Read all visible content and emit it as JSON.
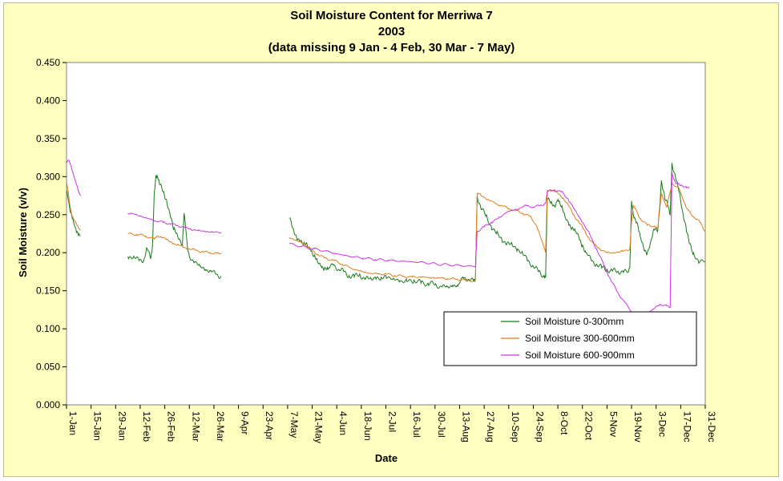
{
  "chart_data": {
    "type": "line",
    "title": "Soil Moisture Content for Merriwa 7",
    "subtitle": "2003",
    "note": "(data missing 9 Jan - 4 Feb, 30 Mar - 7 May)",
    "xlabel": "Date",
    "ylabel": "Soil Moisture (v/v)",
    "ylim": [
      0,
      0.45
    ],
    "yticks": [
      "0.000",
      "0.050",
      "0.100",
      "0.150",
      "0.200",
      "0.250",
      "0.300",
      "0.350",
      "0.400",
      "0.450"
    ],
    "xlim": [
      "1-Jan",
      "31-Dec"
    ],
    "xticks": [
      "1-Jan",
      "15-Jan",
      "29-Jan",
      "12-Feb",
      "26-Feb",
      "12-Mar",
      "26-Mar",
      "9-Apr",
      "23-Apr",
      "7-May",
      "21-May",
      "4-Jun",
      "18-Jun",
      "2-Jul",
      "16-Jul",
      "30-Jul",
      "13-Aug",
      "27-Aug",
      "10-Sep",
      "24-Sep",
      "8-Oct",
      "22-Oct",
      "5-Nov",
      "19-Nov",
      "3-Dec",
      "17-Dec",
      "31-Dec"
    ],
    "grid": false,
    "legend_position": "bottom-right",
    "series": [
      {
        "name": "Soil Moisture 0-300mm",
        "color": "#1a7a1a",
        "segments": [
          {
            "x": [
              "1-Jan",
              "2-Jan",
              "3-Jan",
              "4-Jan",
              "5-Jan",
              "6-Jan",
              "7-Jan",
              "8-Jan",
              "9-Jan"
            ],
            "y": [
              0.282,
              0.27,
              0.255,
              0.248,
              0.24,
              0.233,
              0.228,
              0.225,
              0.222
            ]
          },
          {
            "x": [
              "5-Feb",
              "8-Feb",
              "11-Feb",
              "14-Feb",
              "16-Feb",
              "18-Feb",
              "19-Feb",
              "20-Feb",
              "21-Feb",
              "22-Feb",
              "23-Feb",
              "25-Feb",
              "27-Feb",
              "1-Mar",
              "3-Mar",
              "5-Mar",
              "7-Mar",
              "8-Mar",
              "9-Mar",
              "10-Mar",
              "11-Mar",
              "12-Mar",
              "15-Mar",
              "18-Mar",
              "21-Mar",
              "24-Mar",
              "27-Mar",
              "30-Mar"
            ],
            "y": [
              0.195,
              0.193,
              0.192,
              0.19,
              0.205,
              0.192,
              0.21,
              0.28,
              0.302,
              0.298,
              0.29,
              0.28,
              0.27,
              0.25,
              0.23,
              0.225,
              0.215,
              0.208,
              0.252,
              0.23,
              0.205,
              0.195,
              0.188,
              0.182,
              0.178,
              0.176,
              0.172,
              0.169
            ]
          },
          {
            "x": [
              "8-May",
              "10-May",
              "12-May",
              "14-May",
              "16-May",
              "18-May",
              "20-May",
              "22-May",
              "24-May",
              "26-May",
              "28-May",
              "30-May",
              "2-Jun",
              "5-Jun",
              "8-Jun",
              "11-Jun",
              "14-Jun",
              "17-Jun",
              "20-Jun",
              "23-Jun",
              "26-Jun",
              "29-Jun",
              "2-Jul",
              "6-Jul",
              "10-Jul",
              "14-Jul",
              "18-Jul",
              "22-Jul",
              "26-Jul",
              "30-Jul",
              "3-Aug",
              "6-Aug",
              "9-Aug",
              "12-Aug",
              "15-Aug",
              "18-Aug",
              "21-Aug",
              "22-Aug"
            ],
            "y": [
              0.245,
              0.232,
              0.222,
              0.215,
              0.21,
              0.212,
              0.205,
              0.195,
              0.188,
              0.183,
              0.18,
              0.178,
              0.185,
              0.178,
              0.175,
              0.17,
              0.168,
              0.172,
              0.165,
              0.166,
              0.168,
              0.164,
              0.17,
              0.165,
              0.163,
              0.162,
              0.164,
              0.16,
              0.16,
              0.158,
              0.155,
              0.155,
              0.157,
              0.156,
              0.168,
              0.165,
              0.162,
              0.165
            ]
          },
          {
            "x": [
              "22-Aug",
              "23-Aug",
              "25-Aug",
              "28-Aug",
              "31-Aug",
              "3-Sep",
              "6-Sep",
              "9-Sep",
              "12-Sep",
              "15-Sep",
              "18-Sep",
              "21-Sep",
              "24-Sep",
              "27-Sep",
              "30-Sep",
              "1-Oct",
              "2-Oct",
              "4-Oct",
              "6-Oct",
              "8-Oct",
              "10-Oct",
              "12-Oct",
              "14-Oct",
              "16-Oct",
              "18-Oct",
              "20-Oct",
              "22-Oct",
              "24-Oct",
              "27-Oct",
              "30-Oct",
              "2-Nov",
              "5-Nov",
              "8-Nov",
              "11-Nov",
              "14-Nov",
              "17-Nov",
              "18-Nov",
              "19-Nov",
              "20-Nov",
              "22-Nov",
              "24-Nov",
              "26-Nov",
              "28-Nov",
              "30-Nov",
              "2-Dec",
              "4-Dec",
              "6-Dec",
              "8-Dec",
              "10-Dec",
              "11-Dec",
              "12-Dec",
              "14-Dec",
              "16-Dec",
              "18-Dec",
              "20-Dec",
              "22-Dec",
              "24-Dec",
              "27-Dec",
              "31-Dec"
            ],
            "y": [
              0.165,
              0.275,
              0.26,
              0.248,
              0.235,
              0.225,
              0.218,
              0.212,
              0.21,
              0.205,
              0.198,
              0.19,
              0.182,
              0.175,
              0.17,
              0.168,
              0.27,
              0.265,
              0.262,
              0.27,
              0.26,
              0.248,
              0.24,
              0.232,
              0.228,
              0.22,
              0.21,
              0.2,
              0.19,
              0.185,
              0.18,
              0.178,
              0.176,
              0.175,
              0.176,
              0.174,
              0.18,
              0.268,
              0.25,
              0.24,
              0.22,
              0.205,
              0.2,
              0.215,
              0.23,
              0.23,
              0.295,
              0.27,
              0.26,
              0.25,
              0.318,
              0.3,
              0.28,
              0.255,
              0.235,
              0.212,
              0.198,
              0.19,
              0.188
            ]
          }
        ]
      },
      {
        "name": "Soil Moisture 300-600mm",
        "color": "#e07b1a",
        "segments": [
          {
            "x": [
              "1-Jan",
              "2-Jan",
              "3-Jan",
              "4-Jan",
              "5-Jan",
              "6-Jan",
              "7-Jan",
              "8-Jan",
              "9-Jan"
            ],
            "y": [
              0.293,
              0.28,
              0.262,
              0.25,
              0.244,
              0.24,
              0.236,
              0.232,
              0.23
            ]
          },
          {
            "x": [
              "5-Feb",
              "10-Feb",
              "15-Feb",
              "20-Feb",
              "22-Feb",
              "25-Feb",
              "28-Feb",
              "3-Mar",
              "6-Mar",
              "9-Mar",
              "12-Mar",
              "16-Mar",
              "20-Mar",
              "24-Mar",
              "28-Mar",
              "30-Mar"
            ],
            "y": [
              0.225,
              0.224,
              0.222,
              0.218,
              0.222,
              0.22,
              0.216,
              0.212,
              0.21,
              0.207,
              0.205,
              0.203,
              0.201,
              0.2,
              0.199,
              0.198
            ]
          },
          {
            "x": [
              "8-May",
              "12-May",
              "16-May",
              "20-May",
              "24-May",
              "28-May",
              "2-Jun",
              "7-Jun",
              "12-Jun",
              "17-Jun",
              "22-Jun",
              "27-Jun",
              "2-Jul",
              "7-Jul",
              "12-Jul",
              "17-Jul",
              "22-Jul",
              "27-Jul",
              "1-Aug",
              "6-Aug",
              "11-Aug",
              "16-Aug",
              "22-Aug"
            ],
            "y": [
              0.22,
              0.216,
              0.212,
              0.205,
              0.198,
              0.193,
              0.19,
              0.185,
              0.18,
              0.176,
              0.173,
              0.172,
              0.172,
              0.17,
              0.169,
              0.168,
              0.168,
              0.167,
              0.167,
              0.166,
              0.165,
              0.164,
              0.163
            ]
          },
          {
            "x": [
              "22-Aug",
              "23-Aug",
              "25-Aug",
              "29-Aug",
              "2-Sep",
              "6-Sep",
              "10-Sep",
              "14-Sep",
              "18-Sep",
              "22-Sep",
              "26-Sep",
              "29-Sep",
              "1-Oct",
              "2-Oct",
              "5-Oct",
              "8-Oct",
              "11-Oct",
              "14-Oct",
              "17-Oct",
              "20-Oct",
              "23-Oct",
              "26-Oct",
              "29-Oct",
              "1-Nov",
              "5-Nov",
              "10-Nov",
              "14-Nov",
              "18-Nov",
              "19-Nov",
              "20-Nov",
              "24-Nov",
              "28-Nov",
              "2-Dec",
              "4-Dec",
              "6-Dec",
              "9-Dec",
              "12-Dec",
              "16-Dec",
              "20-Dec",
              "24-Dec",
              "28-Dec",
              "31-Dec"
            ],
            "y": [
              0.163,
              0.278,
              0.276,
              0.27,
              0.265,
              0.262,
              0.258,
              0.255,
              0.252,
              0.248,
              0.235,
              0.215,
              0.2,
              0.282,
              0.282,
              0.278,
              0.272,
              0.262,
              0.25,
              0.24,
              0.23,
              0.218,
              0.21,
              0.205,
              0.2,
              0.2,
              0.202,
              0.205,
              0.24,
              0.262,
              0.245,
              0.236,
              0.235,
              0.232,
              0.278,
              0.26,
              0.29,
              0.285,
              0.26,
              0.248,
              0.24,
              0.228
            ]
          }
        ]
      },
      {
        "name": "Soil Moisture 600-900mm",
        "color": "#cc33e6",
        "segments": [
          {
            "x": [
              "1-Jan",
              "2-Jan",
              "3-Jan",
              "4-Jan",
              "5-Jan",
              "6-Jan",
              "7-Jan",
              "8-Jan",
              "9-Jan"
            ],
            "y": [
              0.318,
              0.322,
              0.318,
              0.31,
              0.302,
              0.295,
              0.288,
              0.28,
              0.275
            ]
          },
          {
            "x": [
              "5-Feb",
              "10-Feb",
              "15-Feb",
              "20-Feb",
              "25-Feb",
              "1-Mar",
              "5-Mar",
              "9-Mar",
              "13-Mar",
              "17-Mar",
              "21-Mar",
              "25-Mar",
              "30-Mar"
            ],
            "y": [
              0.252,
              0.25,
              0.246,
              0.242,
              0.24,
              0.238,
              0.236,
              0.233,
              0.231,
              0.229,
              0.228,
              0.227,
              0.227
            ]
          },
          {
            "x": [
              "8-May",
              "15-May",
              "22-May",
              "29-May",
              "5-Jun",
              "12-Jun",
              "19-Jun",
              "26-Jun",
              "3-Jul",
              "10-Jul",
              "17-Jul",
              "24-Jul",
              "31-Jul",
              "7-Aug",
              "14-Aug",
              "22-Aug"
            ],
            "y": [
              0.212,
              0.208,
              0.205,
              0.202,
              0.198,
              0.195,
              0.193,
              0.191,
              0.19,
              0.189,
              0.188,
              0.187,
              0.185,
              0.184,
              0.183,
              0.182
            ]
          },
          {
            "x": [
              "22-Aug",
              "23-Aug",
              "27-Aug",
              "31-Aug",
              "4-Sep",
              "8-Sep",
              "12-Sep",
              "16-Sep",
              "20-Sep",
              "24-Sep",
              "28-Sep",
              "1-Oct",
              "2-Oct",
              "6-Oct",
              "10-Oct",
              "14-Oct",
              "18-Oct",
              "22-Oct",
              "26-Oct",
              "30-Oct",
              "3-Nov",
              "7-Nov",
              "11-Nov",
              "15-Nov",
              "19-Nov",
              "23-Nov",
              "27-Nov",
              "1-Dec",
              "5-Dec",
              "9-Dec",
              "11-Dec",
              "12-Dec",
              "14-Dec",
              "17-Dec",
              "20-Dec",
              "22-Dec"
            ],
            "y": [
              0.182,
              0.228,
              0.234,
              0.24,
              0.245,
              0.252,
              0.256,
              0.258,
              0.262,
              0.26,
              0.262,
              0.265,
              0.28,
              0.283,
              0.28,
              0.27,
              0.255,
              0.24,
              0.225,
              0.205,
              0.185,
              0.165,
              0.148,
              0.135,
              0.122,
              0.118,
              0.12,
              0.125,
              0.132,
              0.13,
              0.128,
              0.305,
              0.292,
              0.288,
              0.287,
              0.285
            ]
          }
        ]
      }
    ]
  }
}
